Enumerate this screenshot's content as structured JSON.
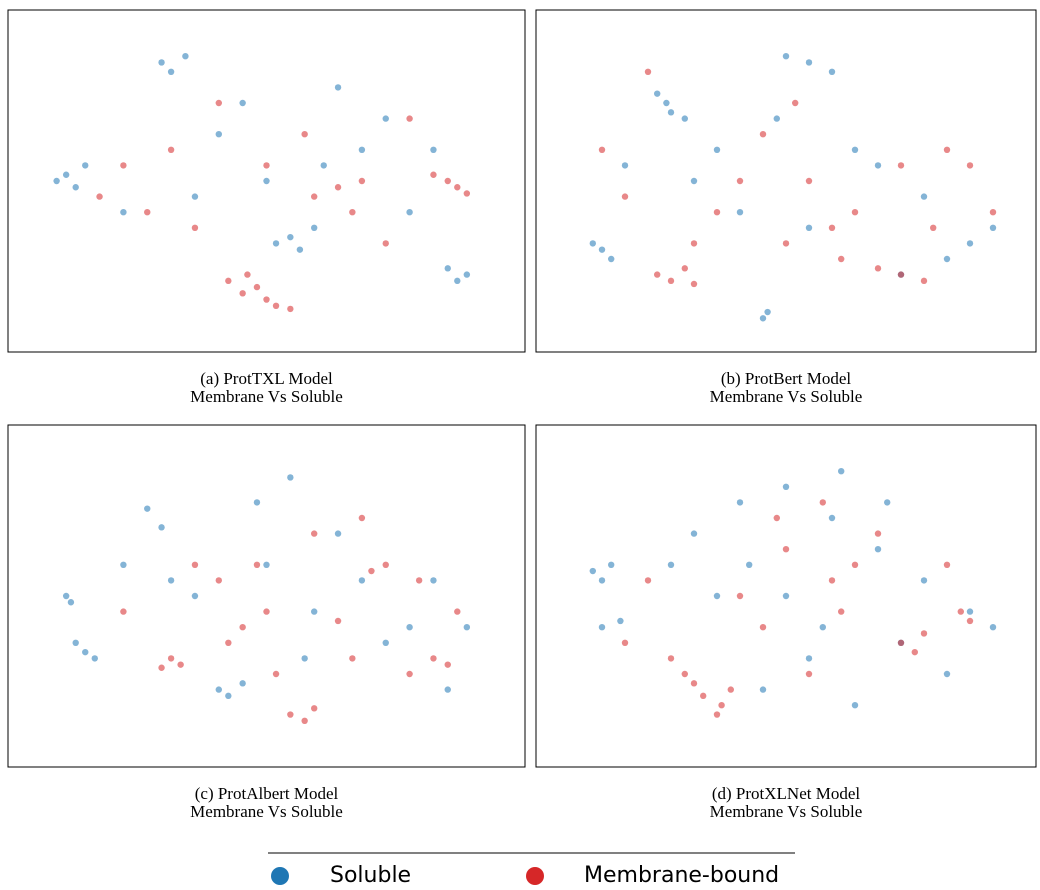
{
  "chart_data": [
    {
      "type": "scatter",
      "caption": [
        "(a) ProtTXL Model",
        "Membrane Vs Soluble"
      ],
      "series": [
        {
          "name": "Soluble",
          "color": "#1f77b4",
          "x": [
            8,
            10,
            6,
            12,
            28,
            30,
            33,
            55,
            57,
            52,
            60,
            90,
            92,
            88,
            80,
            70,
            40,
            45,
            65,
            75,
            20,
            50,
            85,
            35,
            62
          ],
          "y": [
            52,
            48,
            50,
            55,
            88,
            85,
            90,
            32,
            28,
            30,
            35,
            18,
            20,
            22,
            40,
            60,
            65,
            75,
            80,
            70,
            40,
            50,
            60,
            45,
            55
          ]
        },
        {
          "name": "Membrane-bound",
          "color": "#d62728",
          "x": [
            42,
            45,
            48,
            50,
            52,
            55,
            46,
            90,
            88,
            92,
            85,
            60,
            65,
            25,
            30,
            70,
            35,
            75,
            20,
            58,
            40,
            80,
            15,
            50,
            68
          ],
          "y": [
            18,
            14,
            16,
            12,
            10,
            9,
            20,
            48,
            50,
            46,
            52,
            45,
            48,
            40,
            60,
            50,
            35,
            30,
            55,
            65,
            75,
            70,
            45,
            55,
            40
          ]
        }
      ]
    },
    {
      "type": "scatter",
      "caption": [
        "(b) ProtBert Model",
        "Membrane Vs Soluble"
      ],
      "series": [
        {
          "name": "Soluble",
          "color": "#1f77b4",
          "x": [
            22,
            25,
            28,
            24,
            8,
            10,
            12,
            45,
            46,
            50,
            55,
            60,
            35,
            70,
            80,
            90,
            95,
            40,
            65,
            30,
            85,
            75,
            15,
            55,
            48
          ],
          "y": [
            78,
            72,
            70,
            75,
            30,
            28,
            25,
            6,
            8,
            90,
            88,
            85,
            60,
            55,
            45,
            30,
            35,
            40,
            60,
            50,
            25,
            20,
            55,
            35,
            70
          ]
        },
        {
          "name": "Membrane-bound",
          "color": "#d62728",
          "x": [
            22,
            25,
            28,
            30,
            70,
            75,
            80,
            35,
            60,
            85,
            90,
            20,
            40,
            50,
            65,
            10,
            15,
            55,
            45,
            75,
            95,
            30,
            62,
            82,
            52
          ],
          "y": [
            20,
            18,
            22,
            17,
            22,
            20,
            18,
            40,
            35,
            60,
            55,
            85,
            50,
            30,
            40,
            60,
            45,
            50,
            65,
            55,
            40,
            30,
            25,
            35,
            75
          ]
        }
      ]
    },
    {
      "type": "scatter",
      "caption": [
        "(c) ProtAlbert Model",
        "Membrane Vs Soluble"
      ],
      "series": [
        {
          "name": "Soluble",
          "color": "#1f77b4",
          "x": [
            10,
            12,
            14,
            8,
            9,
            25,
            28,
            40,
            42,
            45,
            50,
            55,
            70,
            75,
            80,
            88,
            60,
            35,
            65,
            30,
            48,
            20,
            85,
            92,
            58
          ],
          "y": [
            35,
            32,
            30,
            50,
            48,
            78,
            72,
            20,
            18,
            22,
            60,
            88,
            55,
            35,
            40,
            20,
            45,
            50,
            70,
            55,
            80,
            60,
            55,
            40,
            30
          ]
        },
        {
          "name": "Membrane-bound",
          "color": "#d62728",
          "x": [
            30,
            32,
            28,
            55,
            58,
            60,
            80,
            85,
            88,
            75,
            72,
            45,
            50,
            65,
            40,
            35,
            90,
            20,
            60,
            70,
            52,
            42,
            82,
            68,
            48
          ],
          "y": [
            30,
            28,
            27,
            12,
            10,
            14,
            25,
            30,
            28,
            60,
            58,
            40,
            45,
            42,
            55,
            60,
            45,
            45,
            70,
            75,
            25,
            35,
            55,
            30,
            60
          ]
        }
      ]
    },
    {
      "type": "scatter",
      "caption": [
        "(d) ProtXLNet Model",
        "Membrane Vs Soluble"
      ],
      "series": [
        {
          "name": "Soluble",
          "color": "#1f77b4",
          "x": [
            8,
            10,
            12,
            14,
            10,
            30,
            40,
            50,
            60,
            70,
            80,
            90,
            95,
            45,
            55,
            65,
            35,
            75,
            85,
            25,
            50,
            62,
            72,
            42,
            58
          ],
          "y": [
            58,
            55,
            60,
            42,
            40,
            70,
            80,
            85,
            75,
            65,
            55,
            45,
            40,
            20,
            30,
            15,
            50,
            35,
            25,
            60,
            50,
            90,
            80,
            60,
            40
          ]
        },
        {
          "name": "Membrane-bound",
          "color": "#d62728",
          "x": [
            25,
            28,
            30,
            32,
            35,
            36,
            38,
            75,
            78,
            80,
            88,
            90,
            60,
            45,
            50,
            20,
            55,
            65,
            70,
            40,
            85,
            15,
            62,
            48,
            58
          ],
          "y": [
            30,
            25,
            22,
            18,
            12,
            15,
            20,
            35,
            32,
            38,
            45,
            42,
            55,
            40,
            65,
            55,
            25,
            60,
            70,
            50,
            60,
            35,
            45,
            75,
            80
          ]
        }
      ]
    }
  ]
}
